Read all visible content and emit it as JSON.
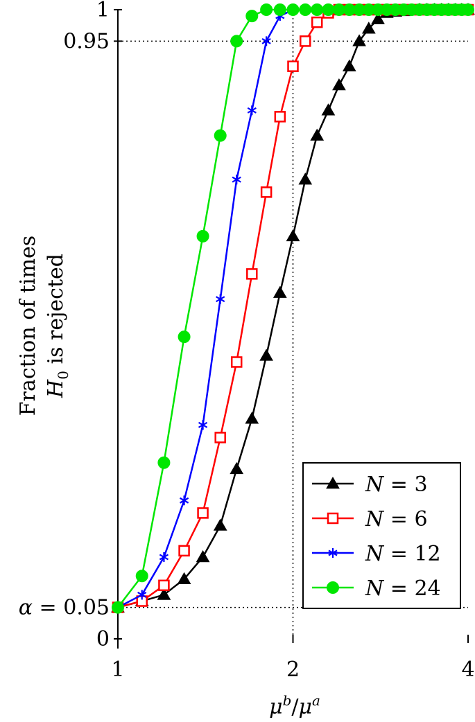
{
  "chart_data": {
    "type": "line",
    "title": "",
    "xlabel": "μ^b/μ^a",
    "ylabel_line1": "Fraction of times",
    "ylabel_line2": "H_0 is rejected",
    "xlim": [
      1,
      4
    ],
    "x_scale": "log",
    "ylim": [
      0,
      1
    ],
    "x_ticks": [
      {
        "value": 1,
        "label": "1"
      },
      {
        "value": 2,
        "label": "2"
      },
      {
        "value": 4,
        "label": "4"
      }
    ],
    "y_ticks": [
      {
        "value": 0,
        "label": "0"
      },
      {
        "value": 0.05,
        "label": "α = 0.05"
      },
      {
        "value": 0.95,
        "label": "0.95"
      },
      {
        "value": 1,
        "label": "1"
      }
    ],
    "reference_lines": [
      {
        "axis": "y",
        "value": 0.05,
        "style": "dotted"
      },
      {
        "axis": "y",
        "value": 0.95,
        "style": "dotted"
      },
      {
        "axis": "x",
        "value": 2,
        "style": "dotted"
      }
    ],
    "legend_position": "bottom-right",
    "x": [
      1.0,
      1.1,
      1.2,
      1.3,
      1.4,
      1.5,
      1.6,
      1.7,
      1.8,
      1.9,
      2.0,
      2.1,
      2.2,
      2.3,
      2.4,
      2.5,
      2.6,
      2.7,
      2.8,
      2.9,
      3.0,
      3.1,
      3.2,
      3.3,
      3.4,
      3.5,
      3.6,
      3.7,
      3.8,
      3.9,
      4.0
    ],
    "series": [
      {
        "name": "N = 3",
        "color": "#000000",
        "marker": "triangle",
        "values": [
          0.05,
          0.06,
          0.07,
          0.095,
          0.13,
          0.18,
          0.27,
          0.35,
          0.45,
          0.55,
          0.64,
          0.73,
          0.8,
          0.84,
          0.88,
          0.91,
          0.95,
          0.97,
          0.985,
          0.995,
          0.997,
          0.998,
          0.999,
          1.0,
          1.0,
          1.0,
          1.0,
          1.0,
          1.0,
          1.0,
          1.0
        ]
      },
      {
        "name": "N = 6",
        "color": "#ff0000",
        "marker": "square",
        "values": [
          0.05,
          0.06,
          0.085,
          0.14,
          0.2,
          0.32,
          0.44,
          0.58,
          0.71,
          0.83,
          0.91,
          0.95,
          0.98,
          0.995,
          1.0,
          1.0,
          1.0,
          1.0,
          1.0,
          1.0,
          1.0,
          1.0,
          1.0,
          1.0,
          1.0,
          1.0,
          1.0,
          1.0,
          1.0,
          1.0,
          1.0
        ]
      },
      {
        "name": "N = 12",
        "color": "#0000ff",
        "marker": "star",
        "values": [
          0.05,
          0.07,
          0.13,
          0.22,
          0.34,
          0.54,
          0.73,
          0.84,
          0.95,
          0.99,
          1.0,
          1.0,
          1.0,
          1.0,
          1.0,
          1.0,
          1.0,
          1.0,
          1.0,
          1.0,
          1.0,
          1.0,
          1.0,
          1.0,
          1.0,
          1.0,
          1.0,
          1.0,
          1.0,
          1.0,
          1.0
        ]
      },
      {
        "name": "N = 24",
        "color": "#00e600",
        "marker": "circle",
        "values": [
          0.05,
          0.1,
          0.28,
          0.48,
          0.64,
          0.8,
          0.95,
          0.99,
          1.0,
          1.0,
          1.0,
          1.0,
          1.0,
          1.0,
          1.0,
          1.0,
          1.0,
          1.0,
          1.0,
          1.0,
          1.0,
          1.0,
          1.0,
          1.0,
          1.0,
          1.0,
          1.0,
          1.0,
          1.0,
          1.0,
          1.0
        ]
      }
    ]
  }
}
